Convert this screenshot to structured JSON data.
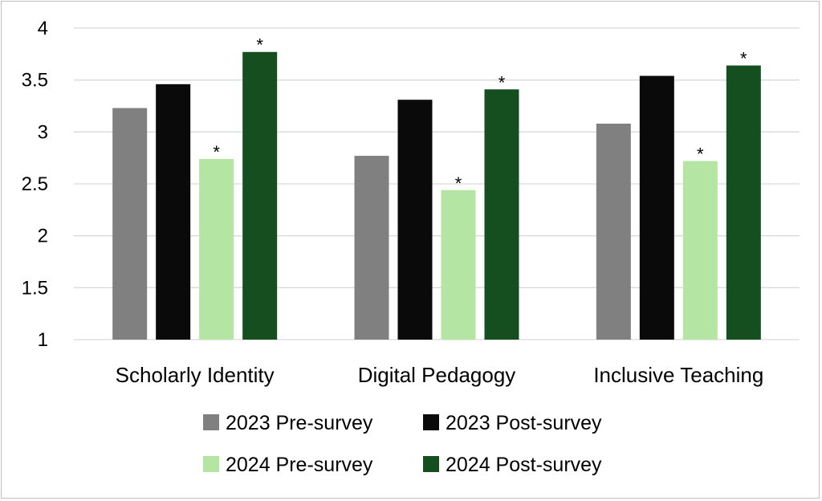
{
  "chart_data": {
    "type": "bar",
    "title": "",
    "xlabel": "",
    "ylabel": "",
    "ylim": [
      1,
      4
    ],
    "yticks": [
      1,
      1.5,
      2,
      2.5,
      3,
      3.5,
      4
    ],
    "grid": true,
    "legend_position": "bottom",
    "categories": [
      "Scholarly Identity",
      "Digital Pedagogy",
      "Inclusive Teaching"
    ],
    "series": [
      {
        "name": "2023 Pre-survey",
        "color": "#808080",
        "values": [
          3.23,
          2.77,
          3.08
        ],
        "significant": [
          false,
          false,
          false
        ]
      },
      {
        "name": "2023 Post-survey",
        "color": "#0a0a0a",
        "values": [
          3.46,
          3.31,
          3.54
        ],
        "significant": [
          false,
          false,
          false
        ]
      },
      {
        "name": "2024 Pre-survey",
        "color": "#b4e5a2",
        "values": [
          2.74,
          2.44,
          2.72
        ],
        "significant": [
          true,
          true,
          true
        ]
      },
      {
        "name": "2024 Post-survey",
        "color": "#154f1f",
        "values": [
          3.77,
          3.41,
          3.64
        ],
        "significant": [
          true,
          true,
          true
        ]
      }
    ],
    "significance_marker": "*",
    "gridline_color": "#d9d9d9"
  }
}
